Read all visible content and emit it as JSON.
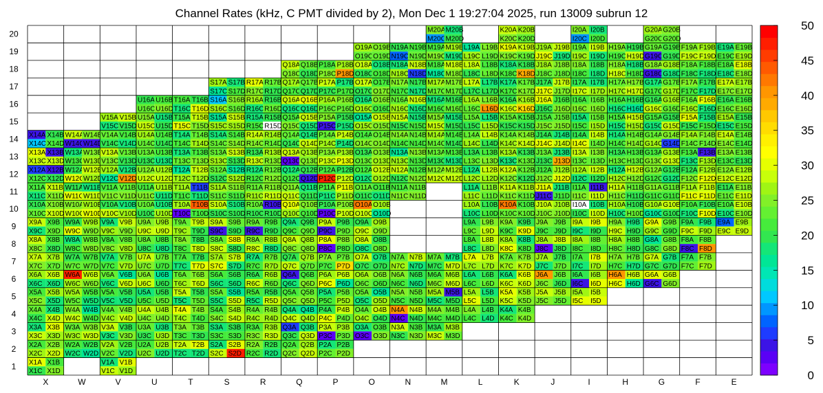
{
  "chart_data": {
    "type": "heatmap",
    "title": "Channel Rates (kHz, C PMT divided by 2), Mon Dec  1 19:27:04 2025, run 13009 subrun 12",
    "columns": [
      "X",
      "W",
      "V",
      "U",
      "T",
      "S",
      "R",
      "Q",
      "P",
      "O",
      "N",
      "M",
      "L",
      "K",
      "J",
      "I",
      "H",
      "G",
      "F",
      "E"
    ],
    "rows": [
      1,
      2,
      3,
      4,
      5,
      6,
      7,
      8,
      9,
      10,
      11,
      12,
      13,
      14,
      15,
      16,
      17,
      18,
      19,
      20
    ],
    "color_scale": {
      "min": 0,
      "max": 50,
      "ticks": [
        0,
        5,
        10,
        15,
        20,
        25,
        30,
        35,
        40,
        45,
        50
      ]
    },
    "cell_suffixes": [
      "A",
      "B",
      "C",
      "D"
    ],
    "grid_lines": true,
    "palette": [
      "#7d00ff",
      "#5a00f5",
      "#3c14e6",
      "#1e3cff",
      "#0064ff",
      "#0096ff",
      "#00c8ff",
      "#00dcdc",
      "#00e6b4",
      "#00e696",
      "#14e678",
      "#32e650",
      "#46eb3c",
      "#64f032",
      "#82f028",
      "#a0f514",
      "#c8ff0a",
      "#e6ff00",
      "#ffff00",
      "#fff000",
      "#ffdc00",
      "#ffc800",
      "#ffaa00",
      "#ff9600",
      "#ff7800",
      "#ff5a00",
      "#ff3c00",
      "#ff1e00",
      "#ff0000"
    ],
    "present_ranges": {
      "20": [
        [
          "M",
          "M"
        ],
        [
          "K",
          "K"
        ],
        [
          "I",
          "I"
        ],
        [
          "G",
          "G"
        ]
      ],
      "19": [
        [
          "O",
          "E"
        ]
      ],
      "18": [
        [
          "Q",
          "E"
        ]
      ],
      "17": [
        [
          "S",
          "E"
        ]
      ],
      "16": [
        [
          "U",
          "E"
        ]
      ],
      "15": [
        [
          "V",
          "E"
        ]
      ],
      "14": [
        [
          "X",
          "E"
        ]
      ],
      "13": [
        [
          "X",
          "E"
        ]
      ],
      "12": [
        [
          "X",
          "E"
        ]
      ],
      "11": [
        [
          "X",
          "N"
        ],
        [
          "L",
          "E"
        ]
      ],
      "10": [
        [
          "X",
          "O"
        ],
        [
          "L",
          "E"
        ]
      ],
      "9": [
        [
          "X",
          "O"
        ],
        [
          "L",
          "E"
        ]
      ],
      "8": [
        [
          "X",
          "O"
        ],
        [
          "L",
          "F"
        ]
      ],
      "7": [
        [
          "X",
          "F"
        ]
      ],
      "6": [
        [
          "X",
          "G"
        ]
      ],
      "5": [
        [
          "X",
          "I"
        ]
      ],
      "4": [
        [
          "X",
          "K"
        ]
      ],
      "3": [
        [
          "X",
          "M"
        ]
      ],
      "2": [
        [
          "X",
          "P"
        ]
      ],
      "1": [
        [
          "X",
          "X"
        ],
        [
          "V",
          "V"
        ]
      ]
    },
    "values": {
      "X14A": 4,
      "X14C": 12,
      "X14D": 21,
      "W14B": 25,
      "W14C": 4,
      "W14D": 4,
      "X13A": 30,
      "X13B": 5,
      "X12A": 6,
      "X12B": 4,
      "W6A": 48,
      "V12D": 41,
      "T10B": 44,
      "T10C": 3,
      "T11B": 6,
      "S16A": 12,
      "S9C": 4,
      "S2D": 48,
      "R10B": 4,
      "R9C": 5,
      "Q6A": 4,
      "Q3A": 6,
      "P12C": 48,
      "P15C": 5,
      "P9C": 5,
      "P8C": 3,
      "P3C": 3,
      "P10C": 3,
      "O3C": 3,
      "N4A": 40,
      "N4C": 3,
      "M5B": 5,
      "K10A": 42,
      "K5A": 30,
      "J6A": 40,
      "J8C": 3,
      "J11C": 5,
      "I11B": 4,
      "I6C": 4,
      "H6A": 40,
      "G6C": 4,
      "G14D": 6,
      "G18C": 4,
      "G19C": 4,
      "F8C": 4,
      "F8D": 40,
      "E9A": 8,
      "F13B": 4,
      "K18D": 38,
      "L16D": 40,
      "K16D": 35,
      "N18D": 6,
      "N19C": 8,
      "M20C": 10,
      "I20C": 10,
      "J13D": 38,
      "O10A": 42,
      "P18D": 40,
      "P7D": 35,
      "I10A": 0,
      "Q12D": 4,
      "Q13C": 3,
      "R15D": 0
    }
  }
}
